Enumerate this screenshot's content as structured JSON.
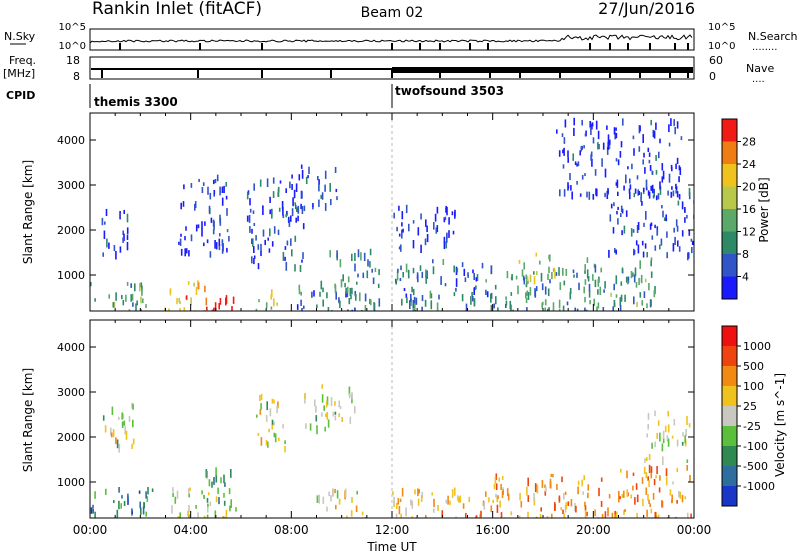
{
  "header": {
    "title": "Rankin Inlet (fitACF)",
    "beam": "Beam 02",
    "date": "27/Jun/2016"
  },
  "status_panels": {
    "nsky": {
      "label": "N.Sky",
      "left_ticks": [
        "10^5",
        "10^0"
      ],
      "right_ticks": [
        "10^5",
        "10^0"
      ],
      "right_label": "N.Search",
      "right_legend": "........"
    },
    "freq": {
      "label": "Freq.",
      "unit": "[MHz]",
      "left_ticks": [
        "18",
        "8"
      ],
      "right_ticks": [
        "60",
        "0"
      ],
      "right_label": "Nave",
      "right_legend": "...."
    },
    "cpid": {
      "label": "CPID",
      "modes": [
        {
          "name": "themis 3300",
          "start_hour": 0
        },
        {
          "name": "twofsound 3503",
          "start_hour": 12
        }
      ]
    }
  },
  "chart_data": [
    {
      "type": "heatmap",
      "panel": "power",
      "ylabel": "Slant Range [km]",
      "ylim": [
        200,
        4600
      ],
      "yticks": [
        1000,
        2000,
        3000,
        4000
      ],
      "xlim": [
        0,
        24
      ],
      "colorbar": {
        "label": "Power [dB]",
        "range": [
          0,
          32
        ],
        "ticks": [
          "4",
          "8",
          "12",
          "16",
          "20",
          "24",
          "28"
        ],
        "colors": [
          "#1a1aff",
          "#2f55c8",
          "#2e8a66",
          "#5aa86a",
          "#b8c84a",
          "#f0c21e",
          "#f07d14",
          "#ef1b14"
        ]
      },
      "regions": [
        {
          "h0": 0.0,
          "h1": 2.2,
          "r0": 200,
          "r1": 900,
          "level": 0.4
        },
        {
          "h0": 0.4,
          "h1": 1.6,
          "r0": 1500,
          "r1": 2500,
          "level": 0.1
        },
        {
          "h0": 2.8,
          "h1": 4.6,
          "r0": 200,
          "r1": 900,
          "level": 0.75
        },
        {
          "h0": 4.3,
          "h1": 5.8,
          "r0": 200,
          "r1": 600,
          "level": 0.95
        },
        {
          "h0": 3.5,
          "h1": 5.5,
          "r0": 1500,
          "r1": 3300,
          "level": 0.1
        },
        {
          "h0": 6.2,
          "h1": 8.5,
          "r0": 1200,
          "r1": 3200,
          "level": 0.15
        },
        {
          "h0": 6.5,
          "h1": 7.5,
          "r0": 200,
          "r1": 700,
          "level": 0.55
        },
        {
          "h0": 8.2,
          "h1": 10.5,
          "r0": 200,
          "r1": 900,
          "level": 0.25
        },
        {
          "h0": 8.0,
          "h1": 9.8,
          "r0": 2500,
          "r1": 3500,
          "level": 0.1
        },
        {
          "h0": 9.5,
          "h1": 11.5,
          "r0": 200,
          "r1": 1600,
          "level": 0.3
        },
        {
          "h0": 12.0,
          "h1": 16.0,
          "r0": 200,
          "r1": 1400,
          "level": 0.25
        },
        {
          "h0": 12.0,
          "h1": 14.5,
          "r0": 1600,
          "r1": 2600,
          "level": 0.08
        },
        {
          "h0": 16.0,
          "h1": 20.5,
          "r0": 200,
          "r1": 1200,
          "level": 0.3
        },
        {
          "h0": 17.0,
          "h1": 18.5,
          "r0": 900,
          "r1": 1500,
          "level": 0.55
        },
        {
          "h0": 19.5,
          "h1": 22.5,
          "r0": 200,
          "r1": 1400,
          "level": 0.35
        },
        {
          "h0": 20.5,
          "h1": 24.0,
          "r0": 1500,
          "r1": 3000,
          "level": 0.12
        },
        {
          "h0": 18.5,
          "h1": 23.5,
          "r0": 2800,
          "r1": 4500,
          "level": 0.1
        }
      ]
    },
    {
      "type": "heatmap",
      "panel": "velocity",
      "ylabel": "Slant Range [km]",
      "xlabel": "Time UT",
      "ylim": [
        200,
        4600
      ],
      "yticks": [
        1000,
        2000,
        3000,
        4000
      ],
      "xlim": [
        0,
        24
      ],
      "xticks": [
        "00:00",
        "04:00",
        "08:00",
        "12:00",
        "16:00",
        "20:00",
        "00:00"
      ],
      "colorbar": {
        "label": "Velocity [m s^-1]",
        "ticks": [
          "1000",
          "500",
          "100",
          "25",
          "-25",
          "-100",
          "-500",
          "-1000"
        ],
        "colors": [
          "#1a36c8",
          "#2e6e9e",
          "#2e8a50",
          "#5cbf3c",
          "#c8c8c0",
          "#f0c21e",
          "#f08a10",
          "#ef4410",
          "#ef1010"
        ]
      },
      "regions": [
        {
          "h0": 0.0,
          "h1": 2.5,
          "r0": 200,
          "r1": 900,
          "level": 0.25
        },
        {
          "h0": 0.5,
          "h1": 1.8,
          "r0": 1800,
          "r1": 2800,
          "level": 0.5
        },
        {
          "h0": 3.0,
          "h1": 5.5,
          "r0": 200,
          "r1": 900,
          "level": 0.5
        },
        {
          "h0": 4.5,
          "h1": 5.8,
          "r0": 400,
          "r1": 1400,
          "level": 0.3
        },
        {
          "h0": 6.5,
          "h1": 7.8,
          "r0": 1800,
          "r1": 3000,
          "level": 0.5
        },
        {
          "h0": 8.5,
          "h1": 10.5,
          "r0": 2200,
          "r1": 3200,
          "level": 0.5
        },
        {
          "h0": 9.0,
          "h1": 11.0,
          "r0": 200,
          "r1": 900,
          "level": 0.55
        },
        {
          "h0": 12.0,
          "h1": 16.5,
          "r0": 200,
          "r1": 900,
          "level": 0.65
        },
        {
          "h0": 16.0,
          "h1": 20.5,
          "r0": 200,
          "r1": 1200,
          "level": 0.7
        },
        {
          "h0": 20.5,
          "h1": 24.0,
          "r0": 200,
          "r1": 1400,
          "level": 0.72
        },
        {
          "h0": 22.0,
          "h1": 23.8,
          "r0": 1500,
          "r1": 2600,
          "level": 0.5
        }
      ]
    }
  ]
}
